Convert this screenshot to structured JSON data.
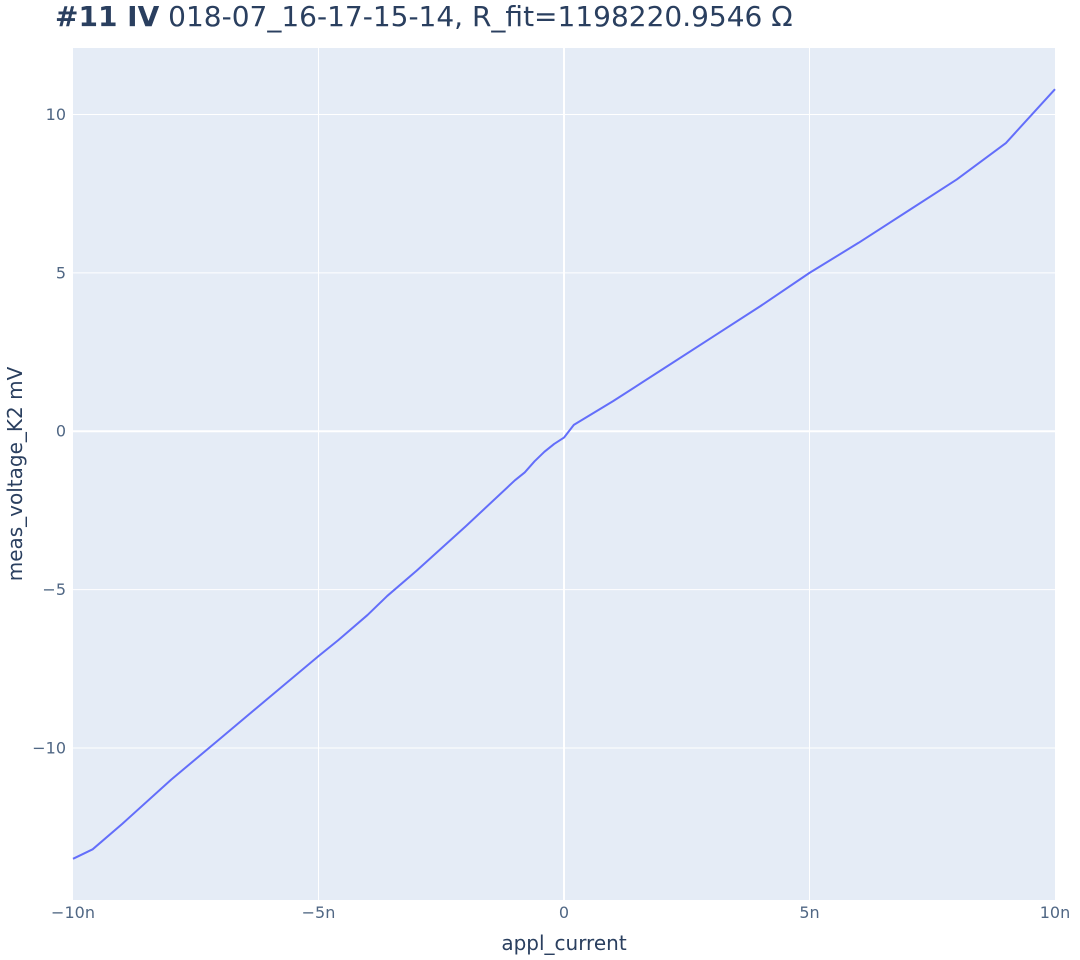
{
  "header": {
    "title_bold": "#11 IV",
    "title_rest": "018-07_16-17-15-14, R_fit=1198220.9546 Ω"
  },
  "chart_data": {
    "type": "line",
    "xlabel": "appl_current",
    "ylabel": "meas_voltage_K2 mV",
    "xlim": [
      -1e-08,
      1e-08
    ],
    "ylim": [
      -14.8,
      12.1
    ],
    "x_ticks": [
      {
        "value": -1e-08,
        "label": "−10n"
      },
      {
        "value": -5e-09,
        "label": "−5n"
      },
      {
        "value": 0,
        "label": "0"
      },
      {
        "value": 5e-09,
        "label": "5n"
      },
      {
        "value": 1e-08,
        "label": "10n"
      }
    ],
    "y_ticks": [
      {
        "value": 10,
        "label": "10"
      },
      {
        "value": 5,
        "label": "5"
      },
      {
        "value": 0,
        "label": "0"
      },
      {
        "value": -5,
        "label": "−5"
      },
      {
        "value": -10,
        "label": "−10"
      }
    ],
    "grid": true,
    "colors": {
      "plot_bg": "#e5ecf6",
      "grid": "#ffffff",
      "line": "#636efa"
    },
    "series": [
      {
        "x": [
          -1e-08,
          -9.6e-09,
          -9e-09,
          -8e-09,
          -7e-09,
          -6e-09,
          -5e-09,
          -4.6e-09,
          -4e-09,
          -3.6e-09,
          -3e-09,
          -2e-09,
          -1e-09,
          -8e-10,
          -6e-10,
          -4e-10,
          -2e-10,
          0,
          2e-10,
          1e-09,
          2e-09,
          3e-09,
          4e-09,
          5e-09,
          6e-09,
          7e-09,
          8e-09,
          9e-09,
          1e-08
        ],
        "y": [
          -13.5,
          -13.2,
          -12.4,
          -11.0,
          -9.7,
          -8.4,
          -7.1,
          -6.6,
          -5.8,
          -5.2,
          -4.4,
          -3.0,
          -1.55,
          -1.3,
          -0.95,
          -0.65,
          -0.4,
          -0.2,
          0.2,
          0.95,
          1.95,
          2.95,
          3.95,
          5.0,
          5.95,
          6.95,
          7.95,
          9.1,
          10.8
        ]
      }
    ]
  }
}
